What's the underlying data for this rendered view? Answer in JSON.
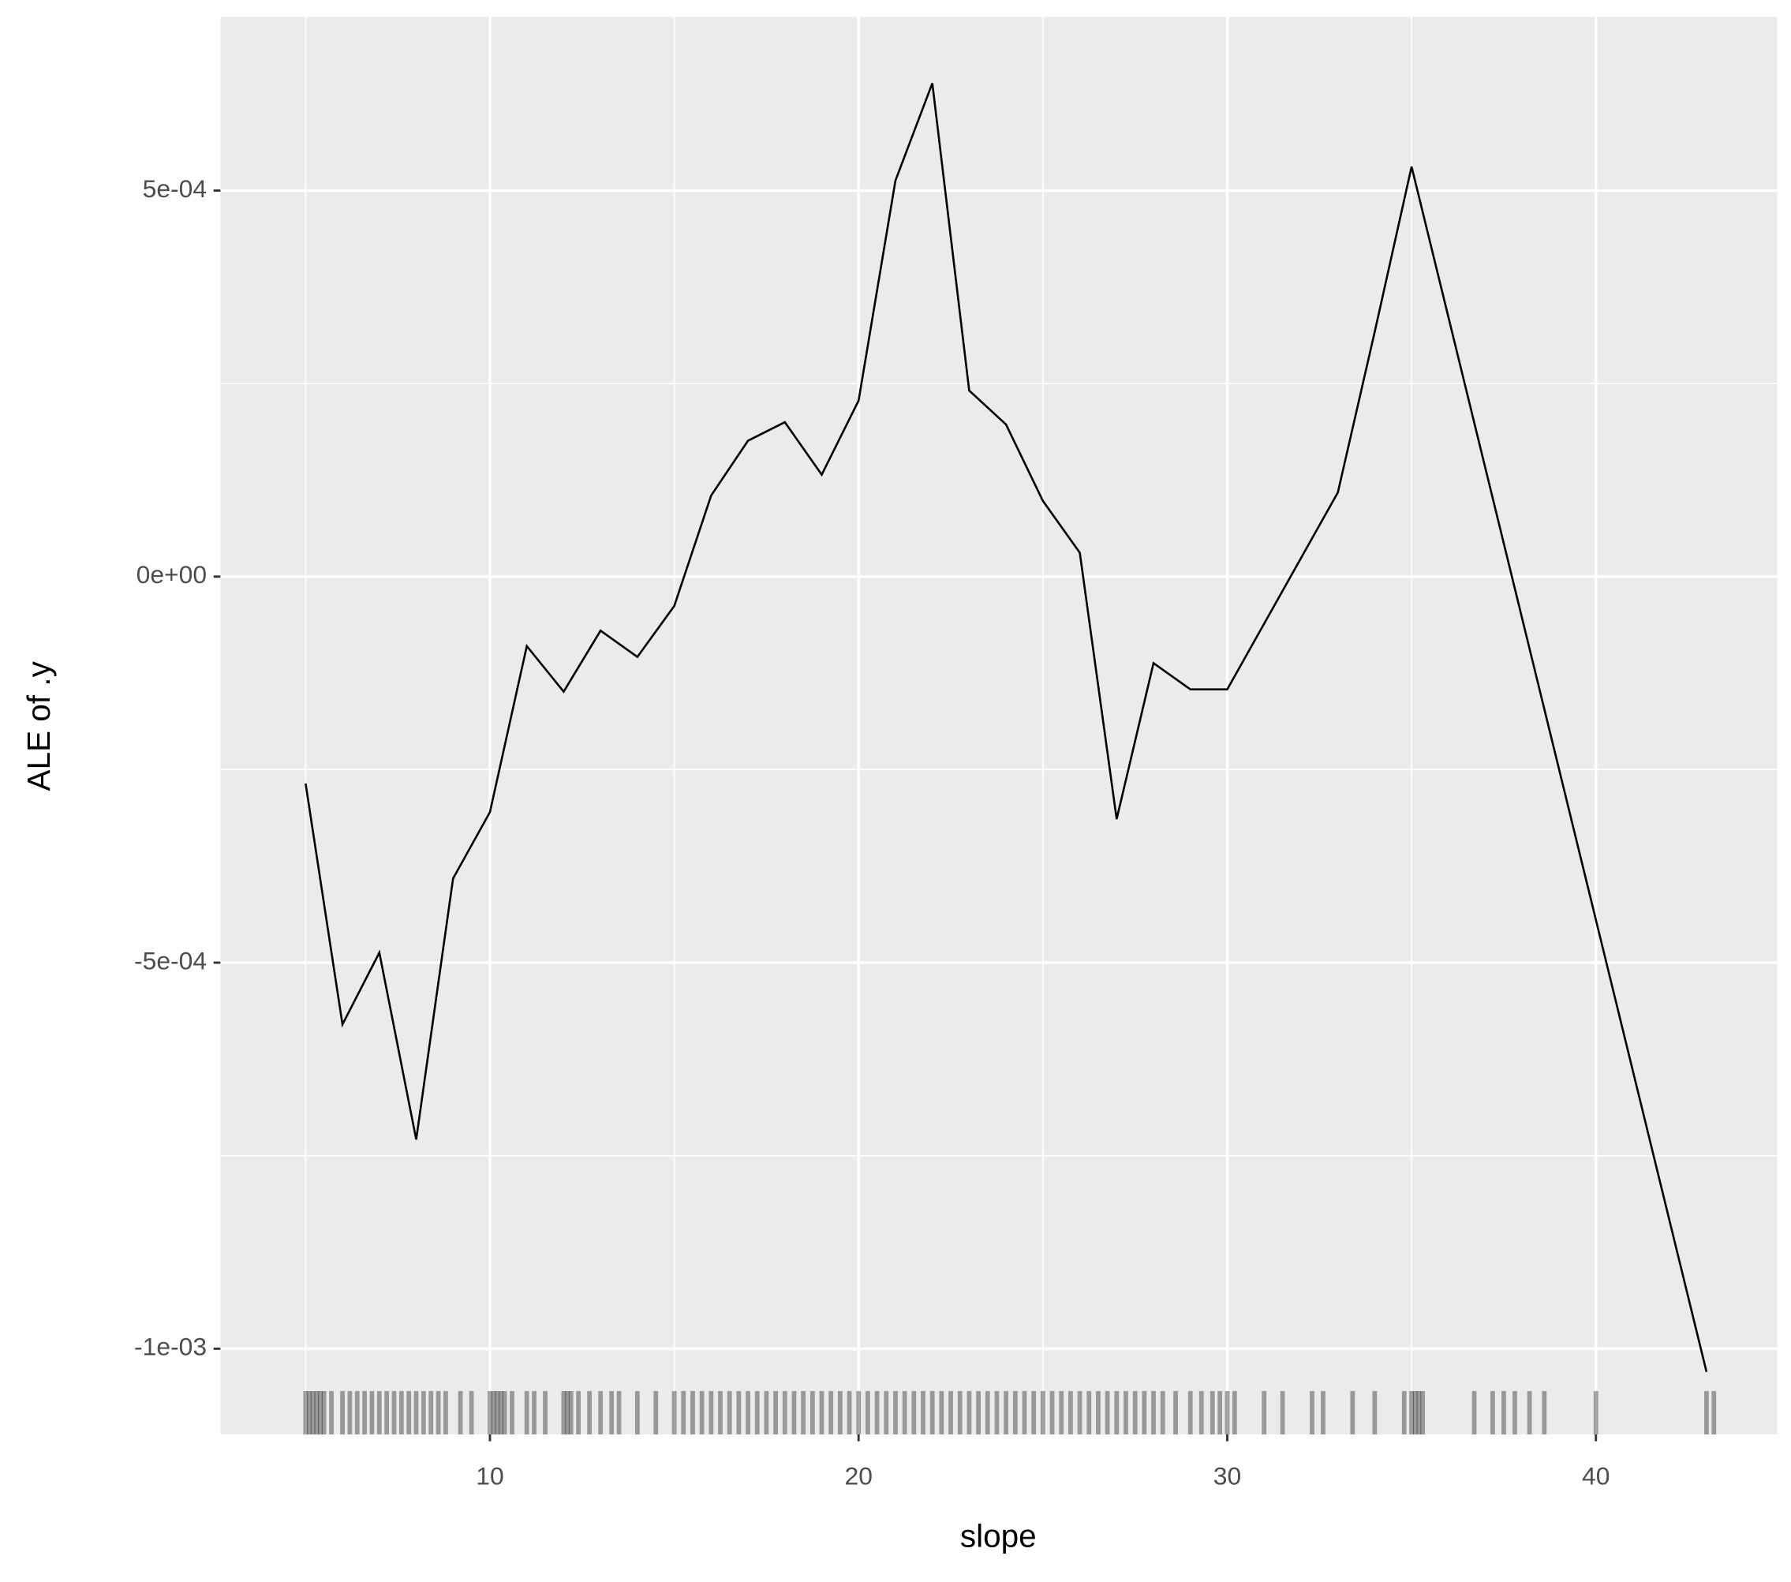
{
  "chart_data": {
    "type": "line",
    "x_label": "slope",
    "y_label": "ALE of .y",
    "x": [
      5,
      6,
      7,
      8,
      9,
      10,
      11,
      12,
      13,
      14,
      15,
      16,
      17,
      18,
      19,
      20,
      21,
      22,
      23,
      24,
      25,
      26,
      27,
      28,
      29,
      30,
      31,
      32,
      33,
      34,
      35,
      43
    ],
    "series": [
      {
        "color": "#000000",
        "values": [
          -0.000268,
          -0.00058,
          -0.000487,
          -0.000729,
          -0.000391,
          -0.000305,
          -9e-05,
          -0.000149,
          -7e-05,
          -0.000104,
          -3.8e-05,
          0.000105,
          0.000176,
          0.0002,
          0.000132,
          0.000228,
          0.000513,
          0.000639,
          0.000241,
          0.000197,
          9.8e-05,
          3.1e-05,
          -0.000314,
          -0.000112,
          -0.000146,
          -0.000146,
          -6.1e-05,
          2.4e-05,
          0.000109,
          0.000317,
          0.000531,
          -0.00103
        ]
      }
    ],
    "rug": [
      5,
      5.1,
      5.2,
      5.3,
      5.4,
      5.5,
      5.7,
      6,
      6.2,
      6.4,
      6.6,
      6.8,
      7,
      7.2,
      7.4,
      7.6,
      7.8,
      8,
      8.2,
      8.4,
      8.6,
      8.8,
      9.2,
      9.5,
      10,
      10.1,
      10.2,
      10.3,
      10.4,
      10.6,
      11,
      11.2,
      11.5,
      12,
      12.1,
      12.2,
      12.4,
      12.7,
      13,
      13.3,
      13.5,
      14,
      14.5,
      15,
      15.25,
      15.5,
      15.75,
      16,
      16.25,
      16.5,
      16.75,
      17,
      17.25,
      17.5,
      17.75,
      18,
      18.25,
      18.5,
      18.75,
      19,
      19.25,
      19.5,
      19.75,
      20,
      20.25,
      20.5,
      20.75,
      21,
      21.25,
      21.5,
      21.75,
      22,
      22.25,
      22.5,
      22.75,
      23,
      23.25,
      23.5,
      23.75,
      24,
      24.25,
      24.5,
      24.75,
      25,
      25.25,
      25.5,
      25.75,
      26,
      26.25,
      26.5,
      26.75,
      27,
      27.25,
      27.5,
      27.75,
      28,
      28.25,
      28.6,
      29,
      29.3,
      29.6,
      29.8,
      30,
      30.2,
      31,
      31.5,
      32.3,
      32.6,
      33.4,
      34,
      34.8,
      35,
      35.1,
      35.2,
      35.3,
      36.7,
      37.2,
      37.5,
      37.8,
      38.2,
      38.6,
      40,
      43,
      43.2
    ],
    "rug_color": "#000000",
    "panel_color": "#ebebeb",
    "grid_color": "#ffffff",
    "grid": true,
    "xlim": [
      2.69,
      44.92
    ],
    "ylim": [
      -0.001111,
      0.000725
    ],
    "xticks": [
      10,
      20,
      30,
      40
    ],
    "x_minor_ticks": [
      5,
      15,
      25,
      35
    ],
    "yticks": [
      {
        "value": -0.001,
        "label": "-1e-03"
      },
      {
        "value": -0.0005,
        "label": "-5e-04"
      },
      {
        "value": 0,
        "label": "0e+00"
      },
      {
        "value": 0.0005,
        "label": "5e-04"
      }
    ],
    "y_minor_ticks": [
      -0.00075,
      -0.00025,
      0.00025
    ]
  }
}
